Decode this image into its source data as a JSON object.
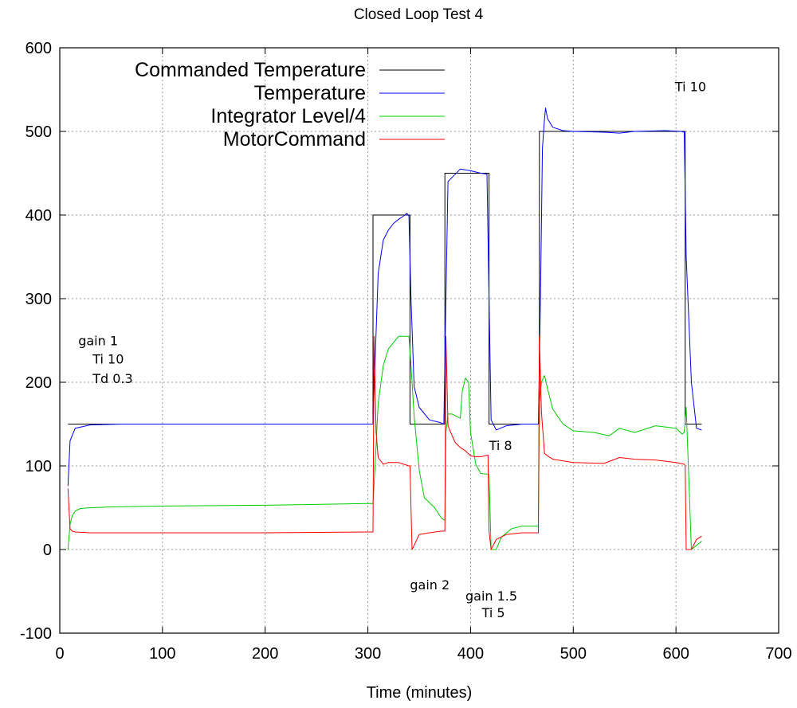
{
  "chart_data": {
    "type": "line",
    "title": "Closed Loop Test 4",
    "xlabel": "Time (minutes)",
    "ylabel": "",
    "xlim": [
      0,
      700
    ],
    "ylim": [
      -100,
      600
    ],
    "xticks": [
      0,
      100,
      200,
      300,
      400,
      500,
      600,
      700
    ],
    "yticks": [
      -100,
      0,
      100,
      200,
      300,
      400,
      500,
      600
    ],
    "grid": true,
    "legend_position": "top-left",
    "series": [
      {
        "name": "Commanded Temperature",
        "color": "#000000",
        "x": [
          8,
          305,
          305,
          341,
          341,
          375,
          375,
          418,
          418,
          467,
          467,
          609,
          609,
          625
        ],
        "y": [
          150,
          150,
          400,
          400,
          150,
          150,
          450,
          450,
          150,
          150,
          500,
          500,
          150,
          150
        ]
      },
      {
        "name": "Temperature",
        "color": "#0000ff",
        "x": [
          8,
          10,
          15,
          30,
          60,
          100,
          200,
          300,
          305,
          308,
          310,
          315,
          320,
          325,
          330,
          335,
          338,
          340,
          342,
          345,
          350,
          360,
          370,
          374,
          376,
          378,
          382,
          390,
          400,
          410,
          416,
          418,
          420,
          425,
          435,
          450,
          466,
          468,
          470,
          472,
          473,
          475,
          480,
          490,
          500,
          530,
          545,
          560,
          590,
          605,
          608,
          610,
          615,
          620,
          625
        ],
        "y": [
          76,
          130,
          145,
          149,
          150,
          150,
          150,
          150,
          150,
          260,
          330,
          370,
          382,
          390,
          395,
          399,
          402,
          399,
          300,
          195,
          170,
          155,
          152,
          150,
          300,
          440,
          445,
          455,
          453,
          450,
          449,
          300,
          155,
          143,
          148,
          150,
          150,
          300,
          480,
          515,
          528,
          515,
          505,
          501,
          500,
          499,
          498,
          500,
          501,
          500,
          499,
          350,
          200,
          145,
          143
        ]
      },
      {
        "name": "Integrator Level/4",
        "color": "#00cc00",
        "x": [
          8,
          10,
          12,
          15,
          20,
          30,
          50,
          100,
          200,
          300,
          305,
          307,
          310,
          315,
          320,
          330,
          340,
          342,
          345,
          350,
          355,
          365,
          372,
          375,
          376,
          378,
          382,
          390,
          392,
          395,
          398,
          400,
          405,
          410,
          418,
          420,
          425,
          430,
          440,
          450,
          466,
          467,
          469,
          472,
          475,
          480,
          490,
          500,
          520,
          535,
          545,
          560,
          580,
          600,
          606,
          608,
          610,
          615,
          625
        ],
        "y": [
          0,
          30,
          40,
          46,
          49,
          50,
          51,
          52,
          53,
          55,
          55,
          100,
          175,
          220,
          240,
          255,
          255,
          220,
          160,
          95,
          62,
          50,
          37,
          35,
          140,
          162,
          162,
          157,
          190,
          205,
          200,
          140,
          102,
          91,
          90,
          0,
          0,
          15,
          25,
          28,
          28,
          175,
          200,
          208,
          192,
          168,
          150,
          142,
          140,
          136,
          145,
          140,
          148,
          145,
          138,
          140,
          170,
          0,
          10
        ]
      },
      {
        "name": "MotorCommand",
        "color": "#ff0000",
        "x": [
          8,
          10,
          12,
          15,
          30,
          100,
          200,
          300,
          305,
          306,
          308,
          310,
          315,
          320,
          330,
          340,
          341,
          343,
          345,
          350,
          360,
          372,
          374,
          375,
          376,
          378,
          380,
          385,
          390,
          395,
          400,
          405,
          410,
          417,
          418,
          420,
          425,
          435,
          450,
          466,
          467,
          469,
          472,
          475,
          480,
          500,
          530,
          545,
          560,
          580,
          600,
          608,
          609,
          610,
          615,
          620,
          625
        ],
        "y": [
          73,
          25,
          22,
          21,
          20,
          20,
          20,
          21,
          21,
          255,
          140,
          110,
          102,
          104,
          104,
          100,
          100,
          0,
          5,
          18,
          20,
          22,
          22,
          22,
          255,
          148,
          142,
          128,
          122,
          118,
          112,
          111,
          111,
          113,
          22,
          0,
          12,
          18,
          20,
          20,
          255,
          165,
          115,
          112,
          108,
          104,
          103,
          110,
          108,
          107,
          104,
          102,
          100,
          0,
          0,
          12,
          16
        ]
      }
    ],
    "annotations": [
      {
        "text": "gain  1",
        "x": 18,
        "y": 250
      },
      {
        "text": "Ti  10",
        "x": 32,
        "y": 228
      },
      {
        "text": "Td 0.3",
        "x": 32,
        "y": 205
      },
      {
        "text": "Ti 8",
        "x": 418,
        "y": 125
      },
      {
        "text": "gain 2",
        "x": 341,
        "y": -42
      },
      {
        "text": "gain 1.5",
        "x": 395,
        "y": -55
      },
      {
        "text": "Ti  5",
        "x": 411,
        "y": -75
      },
      {
        "text": "Ti 10",
        "x": 599,
        "y": 554
      }
    ]
  }
}
